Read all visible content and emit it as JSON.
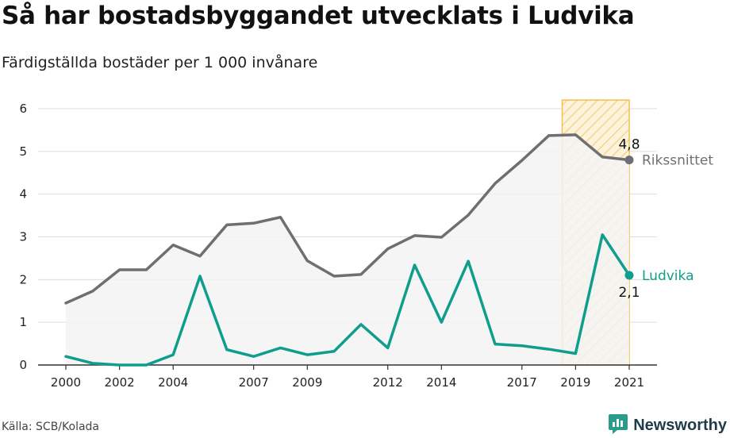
{
  "title": "Så har bostadsbyggandet utvecklats i Ludvika",
  "subtitle": "Färdigställda bostäder per 1 000 invånare",
  "source": "Källa: SCB/Kolada",
  "brand": {
    "name": "Newsworthy",
    "icon": "newsworthy-logo-icon"
  },
  "colors": {
    "national": "#6f6e72",
    "ludvika": "#0f9e8e",
    "highlight": "#f5c04a",
    "area": "#f3f3f5",
    "grid": "#dddddd"
  },
  "chart_data": {
    "type": "line",
    "title": "Så har bostadsbyggandet utvecklats i Ludvika",
    "subtitle": "Färdigställda bostäder per 1 000 invånare",
    "x": [
      2000,
      2001,
      2002,
      2003,
      2004,
      2005,
      2006,
      2007,
      2008,
      2009,
      2010,
      2011,
      2012,
      2013,
      2014,
      2015,
      2016,
      2017,
      2018,
      2019,
      2020,
      2021
    ],
    "x_tick_labels": [
      "2000",
      "2002",
      "2004",
      "2007",
      "2009",
      "2012",
      "2014",
      "2017",
      "2019",
      "2021"
    ],
    "y_ticks": [
      "0",
      "1",
      "2",
      "3",
      "4",
      "5",
      "6"
    ],
    "ylim": [
      0,
      6.2
    ],
    "grid": true,
    "highlight_range": [
      2018.5,
      2021
    ],
    "series": [
      {
        "name": "Rikssnittet",
        "end_label": "4,8",
        "values": [
          1.45,
          1.73,
          2.23,
          2.23,
          2.81,
          2.55,
          3.28,
          3.32,
          3.46,
          2.44,
          2.08,
          2.12,
          2.72,
          3.03,
          2.99,
          3.51,
          4.25,
          4.79,
          5.37,
          5.39,
          4.87,
          4.8
        ]
      },
      {
        "name": "Ludvika",
        "end_label": "2,1",
        "values": [
          0.2,
          0.04,
          0.0,
          0.0,
          0.24,
          2.08,
          0.36,
          0.2,
          0.4,
          0.24,
          0.32,
          0.95,
          0.4,
          2.34,
          1.0,
          2.43,
          0.49,
          0.45,
          0.37,
          0.27,
          3.05,
          2.1
        ]
      }
    ]
  }
}
